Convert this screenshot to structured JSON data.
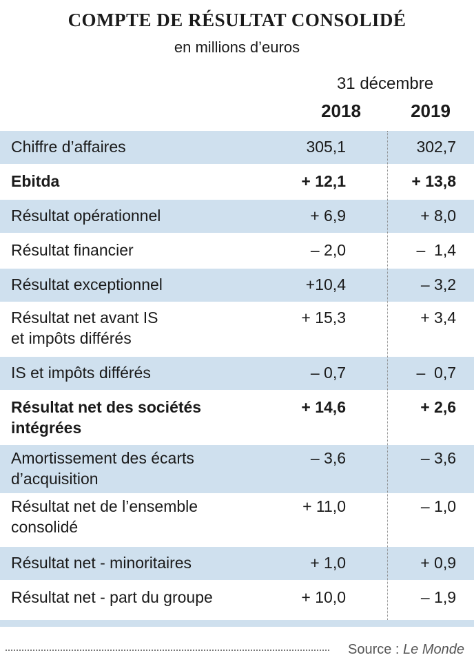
{
  "header": {
    "title": "COMPTE DE RÉSULTAT CONSOLIDÉ",
    "subtitle": "en millions d’euros",
    "date_label": "31 décembre",
    "years": [
      "2018",
      "2019"
    ]
  },
  "rows": [
    {
      "label": "Chiffre d’affaires",
      "v2018": "305,1",
      "v2019": "302,7",
      "bold": false
    },
    {
      "label": "Ebitda",
      "v2018": "+ 12,1",
      "v2019": "+ 13,8",
      "bold": true
    },
    {
      "label": "Résultat opérationnel",
      "v2018": "+ 6,9",
      "v2019": "+ 8,0",
      "bold": false
    },
    {
      "label": "Résultat financier",
      "v2018": "– 2,0",
      "v2019": "–  1,4",
      "bold": false
    },
    {
      "label": "Résultat exceptionnel",
      "v2018": "+10,4",
      "v2019": "– 3,2",
      "bold": false
    },
    {
      "label": "Résultat net avant IS\net impôts différés",
      "v2018": "+ 15,3",
      "v2019": "+ 3,4",
      "bold": false
    },
    {
      "label": "IS et impôts différés",
      "v2018": "– 0,7",
      "v2019": "–  0,7",
      "bold": false
    },
    {
      "label": "Résultat net des sociétés\nintégrées",
      "v2018": "+ 14,6",
      "v2019": "+ 2,6",
      "bold": true
    },
    {
      "label": "Amortissement des écarts\nd’acquisition",
      "v2018": "– 3,6",
      "v2019": "– 3,6",
      "bold": false
    },
    {
      "label": "Résultat net de l’ensemble\nconsolidé",
      "v2018": "+ 11,0",
      "v2019": "– 1,0",
      "bold": false
    },
    {
      "label": "Résultat net - minoritaires",
      "v2018": "+ 1,0",
      "v2019": "+ 0,9",
      "bold": false
    },
    {
      "label": "Résultat net - part du groupe",
      "v2018": "+ 10,0",
      "v2019": "– 1,9",
      "bold": false
    }
  ],
  "source": {
    "prefix": "Source : ",
    "name": "Le Monde"
  },
  "colors": {
    "row_shade": "#cfe0ee"
  }
}
